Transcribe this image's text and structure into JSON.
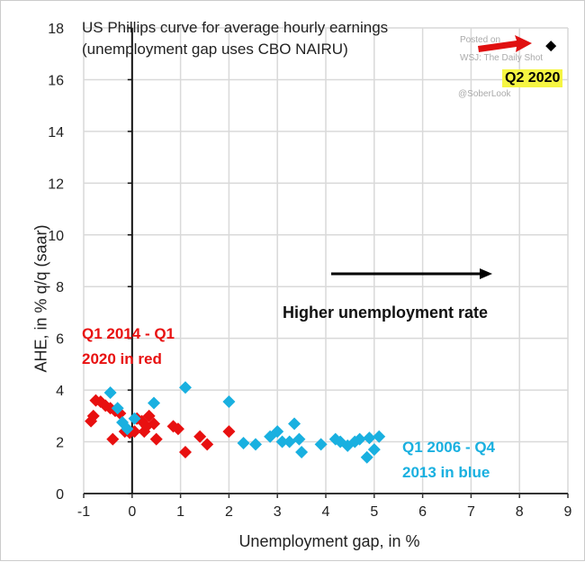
{
  "chart_data": {
    "type": "scatter",
    "title": "US Phillips curve for average hourly earnings",
    "subtitle": "(unemployment gap uses CBO NAIRU)",
    "xlabel": "Unemployment gap, in %",
    "ylabel": "AHE, in % q/q (saar)",
    "xlim": [
      -1,
      9
    ],
    "ylim": [
      0,
      18
    ],
    "xticks": [
      "-1",
      "0",
      "1",
      "2",
      "3",
      "4",
      "5",
      "6",
      "7",
      "8",
      "9"
    ],
    "yticks": [
      "0",
      "2",
      "4",
      "6",
      "8",
      "10",
      "12",
      "14",
      "16",
      "18"
    ],
    "grid": true,
    "series": [
      {
        "name": "Q1 2014 - Q1 2020 in red",
        "color": "#e81010",
        "points": [
          [
            -0.85,
            2.8
          ],
          [
            -0.8,
            3.0
          ],
          [
            -0.75,
            3.6
          ],
          [
            -0.65,
            3.55
          ],
          [
            -0.55,
            3.4
          ],
          [
            -0.45,
            3.3
          ],
          [
            -0.35,
            3.2
          ],
          [
            -0.25,
            3.1
          ],
          [
            -0.4,
            2.1
          ],
          [
            -0.15,
            2.4
          ],
          [
            -0.05,
            2.35
          ],
          [
            0.05,
            2.4
          ],
          [
            0.1,
            2.9
          ],
          [
            0.2,
            2.8
          ],
          [
            0.25,
            2.4
          ],
          [
            0.3,
            2.6
          ],
          [
            0.35,
            3.0
          ],
          [
            0.45,
            2.7
          ],
          [
            0.5,
            2.1
          ],
          [
            0.85,
            2.6
          ],
          [
            0.95,
            2.5
          ],
          [
            1.1,
            1.6
          ],
          [
            1.4,
            2.2
          ],
          [
            1.55,
            1.9
          ],
          [
            2.0,
            2.4
          ]
        ]
      },
      {
        "name": "Q1 2006 - Q4 2013 in blue",
        "color": "#19b0e0",
        "points": [
          [
            -0.45,
            3.9
          ],
          [
            -0.3,
            3.3
          ],
          [
            -0.2,
            2.75
          ],
          [
            -0.1,
            2.5
          ],
          [
            0.05,
            2.9
          ],
          [
            0.45,
            3.5
          ],
          [
            1.1,
            4.1
          ],
          [
            2.0,
            3.55
          ],
          [
            2.3,
            1.95
          ],
          [
            2.55,
            1.9
          ],
          [
            2.85,
            2.2
          ],
          [
            3.0,
            2.4
          ],
          [
            3.1,
            2.0
          ],
          [
            3.25,
            2.0
          ],
          [
            3.35,
            2.7
          ],
          [
            3.45,
            2.1
          ],
          [
            3.5,
            1.6
          ],
          [
            3.9,
            1.9
          ],
          [
            4.2,
            2.1
          ],
          [
            4.3,
            2.0
          ],
          [
            4.45,
            1.85
          ],
          [
            4.6,
            2.0
          ],
          [
            4.7,
            2.1
          ],
          [
            4.85,
            1.4
          ],
          [
            4.9,
            2.15
          ],
          [
            5.0,
            1.7
          ],
          [
            5.1,
            2.2
          ]
        ]
      },
      {
        "name": "Q2 2020",
        "color": "#000000",
        "points": [
          [
            8.65,
            17.3
          ]
        ]
      }
    ],
    "annotations": {
      "q2": "Q2 2020",
      "arrow_text": "Higher unemployment rate",
      "red_label": [
        "Q1 2014 - Q1",
        "2020  in red"
      ],
      "blue_label": [
        "Q1 2006 - Q4",
        "2013  in blue"
      ],
      "watermark": [
        "Posted on",
        "WSJ: The Daily Shot",
        "@SoberLook"
      ]
    }
  }
}
